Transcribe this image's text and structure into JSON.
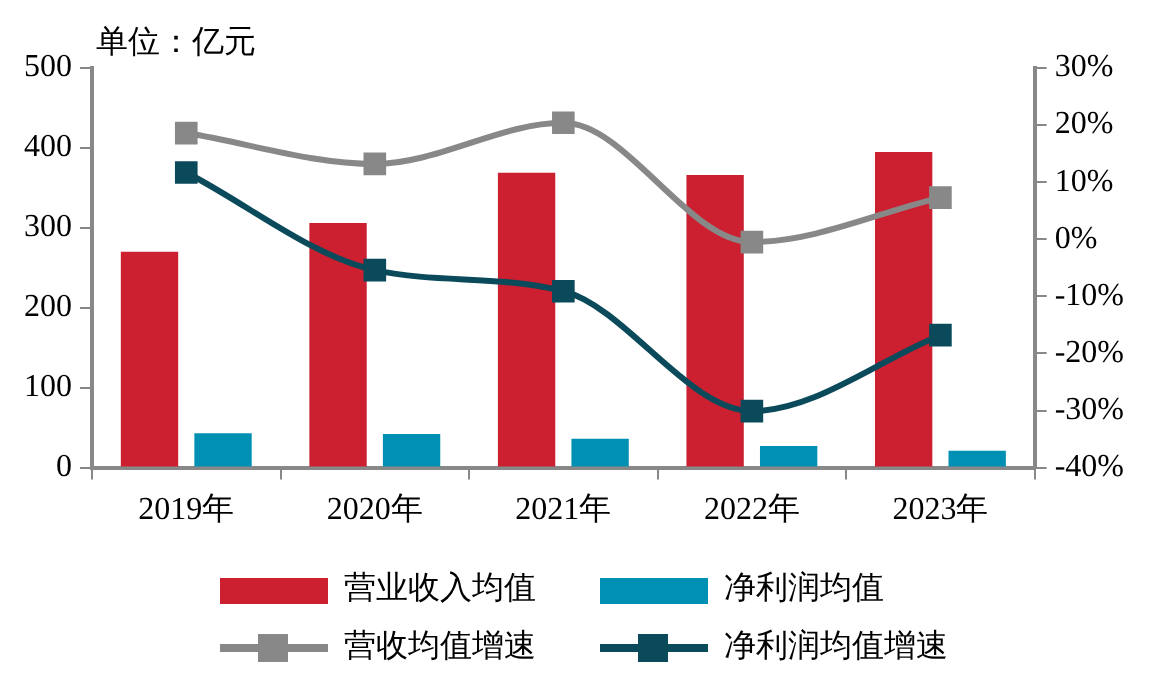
{
  "chart_data": {
    "type": "bar",
    "ylabel": "单位：亿元",
    "categories": [
      "2019年",
      "2020年",
      "2021年",
      "2022年",
      "2023年"
    ],
    "series": [
      {
        "name": "营业收入均值",
        "color": "#cc1f30",
        "values": [
          270,
          306,
          369,
          366,
          395
        ]
      },
      {
        "name": "净利润均值",
        "color": "#0090b3",
        "values": [
          43,
          42,
          36,
          27,
          21
        ]
      },
      {
        "name": "营收均值增速",
        "type": "line",
        "axis": "y2",
        "color": "#888888",
        "values": [
          18.6,
          13.2,
          20.4,
          -0.5,
          7.3
        ]
      },
      {
        "name": "净利润均值增速",
        "type": "line",
        "axis": "y2",
        "color": "#0b4a5a",
        "values": [
          11.7,
          -5.4,
          -9.1,
          -30.1,
          -16.8
        ]
      }
    ],
    "ylim": [
      0,
      500
    ],
    "yticks": [
      0,
      100,
      200,
      300,
      400,
      500
    ],
    "y2lim": [
      -40,
      30
    ],
    "y2ticks": [
      {
        "value": -40,
        "label": "-40%"
      },
      {
        "value": -30,
        "label": "-30%"
      },
      {
        "value": -20,
        "label": "-20%"
      },
      {
        "value": -10,
        "label": "-10%"
      },
      {
        "value": 0,
        "label": "0%"
      },
      {
        "value": 10,
        "label": "10%"
      },
      {
        "value": 20,
        "label": "20%"
      },
      {
        "value": 30,
        "label": "30%"
      }
    ],
    "grid": false,
    "legend": "bottom",
    "marker": "square",
    "line_style": "solid"
  }
}
